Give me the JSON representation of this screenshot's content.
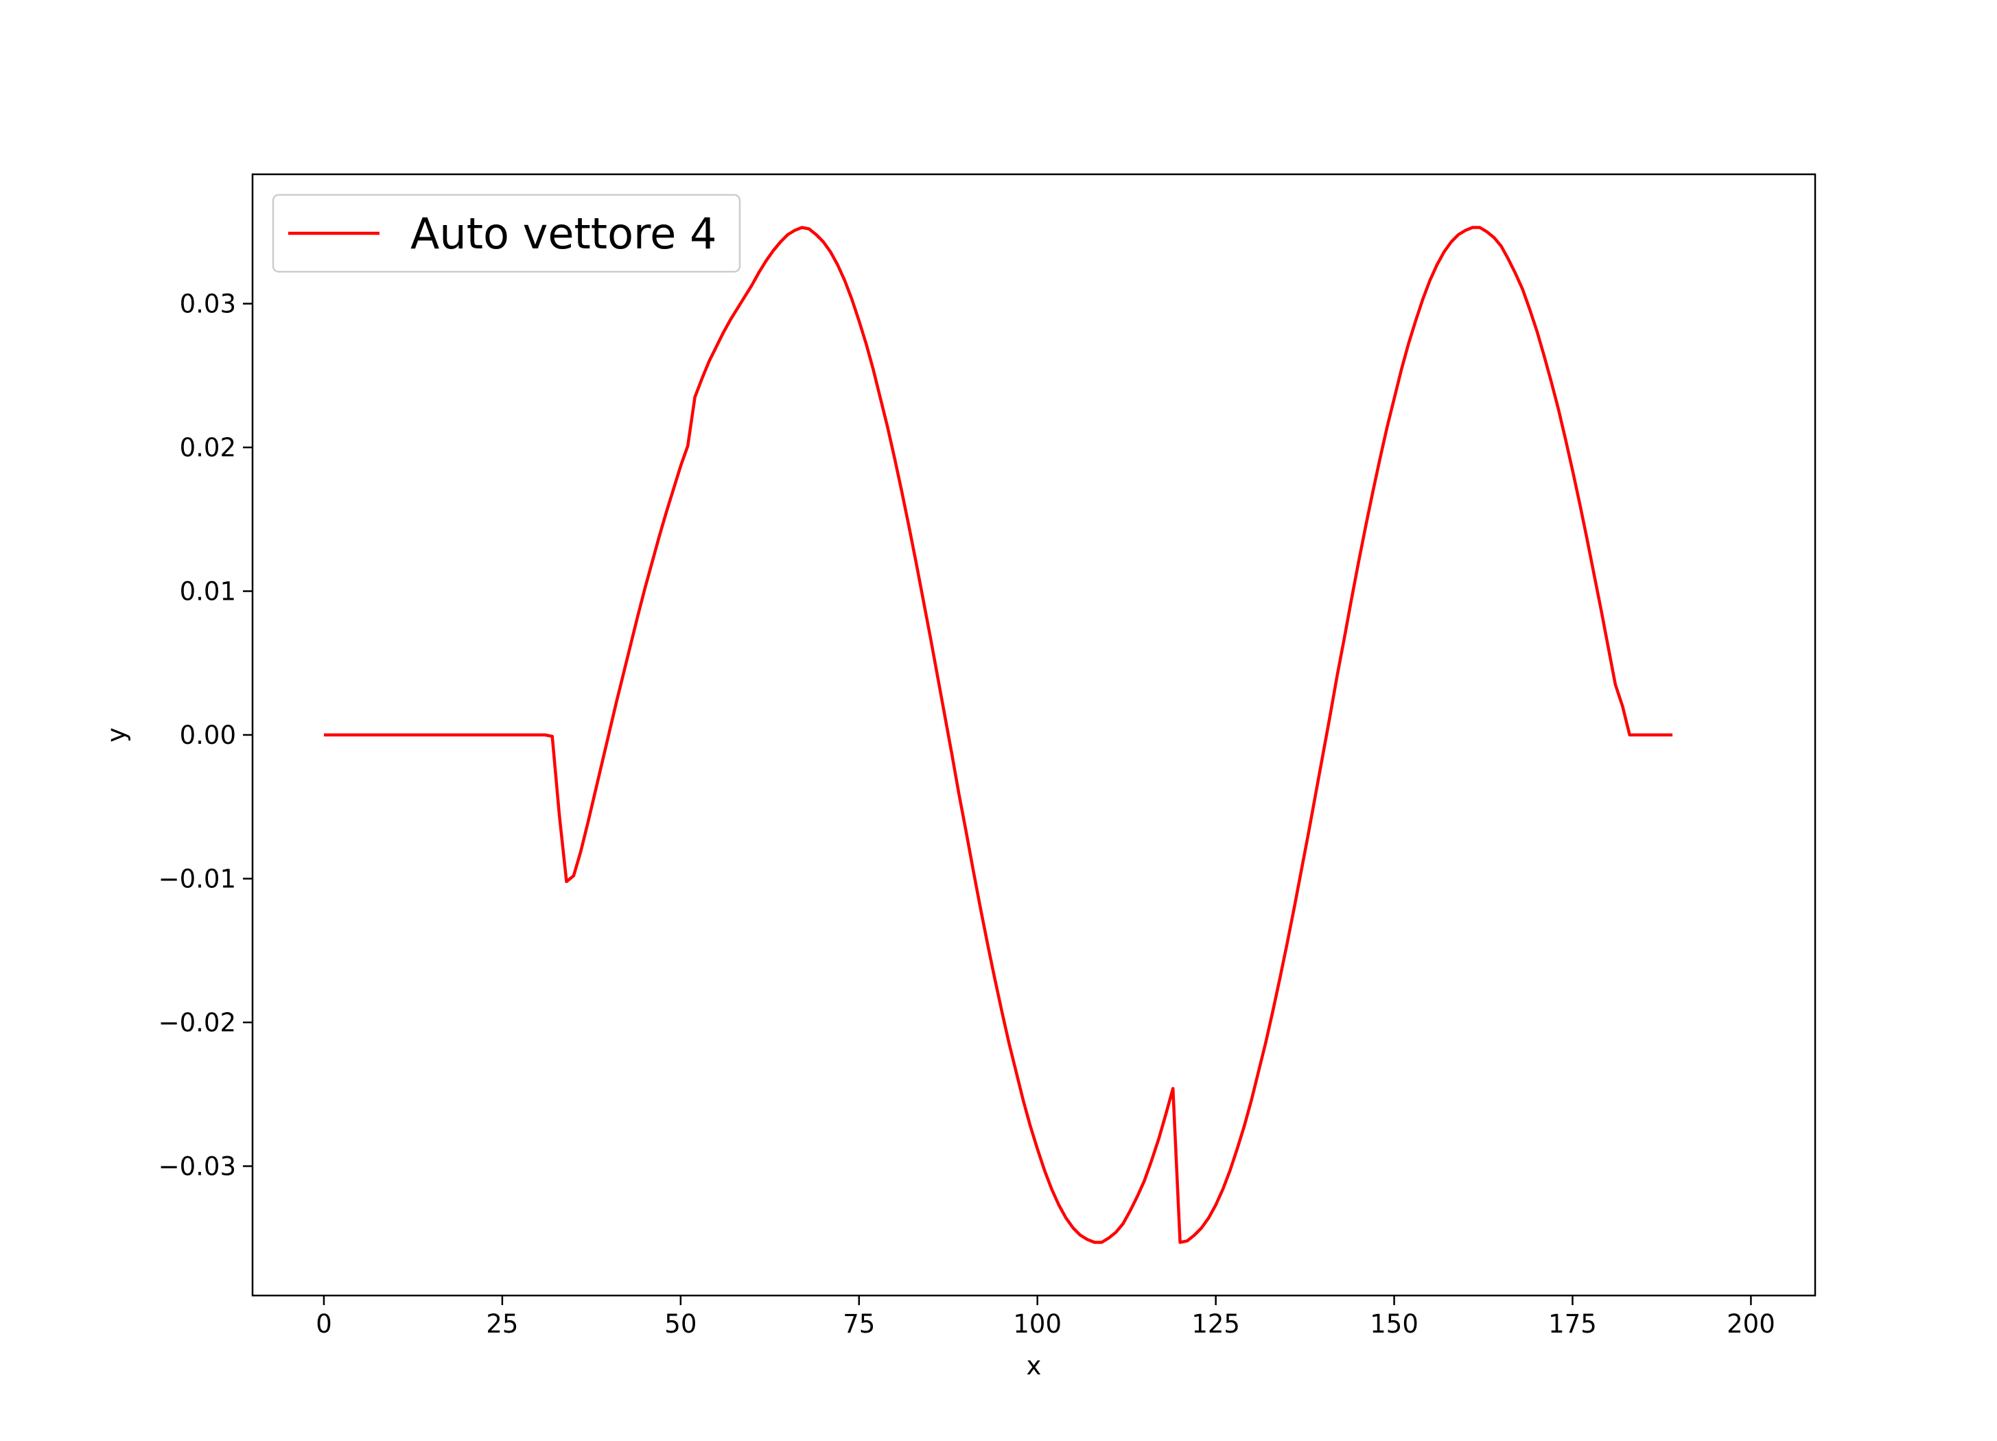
{
  "chart_data": {
    "type": "line",
    "xlabel": "x",
    "ylabel": "y",
    "xlim": [
      -10,
      209
    ],
    "ylim": [
      -0.039,
      0.039
    ],
    "xticks": [
      0,
      25,
      50,
      75,
      100,
      125,
      150,
      175,
      200
    ],
    "xtick_labels": [
      "0",
      "25",
      "50",
      "75",
      "100",
      "125",
      "150",
      "175",
      "200"
    ],
    "yticks": [
      -0.03,
      -0.02,
      -0.01,
      0.0,
      0.01,
      0.02,
      0.03
    ],
    "ytick_labels": [
      "−0.03",
      "−0.02",
      "−0.01",
      "0.00",
      "0.01",
      "0.02",
      "0.03"
    ],
    "grid": false,
    "legend_position": "upper-left",
    "series": [
      {
        "name": "Auto vettore 4",
        "color": "#ff0000",
        "x_start": 0,
        "x_end": 199,
        "step": 1,
        "y": [
          0.0,
          0.0,
          0.0,
          0.0,
          0.0,
          0.0,
          0.0,
          0.0,
          0.0,
          0.0,
          0.0,
          0.0,
          0.0,
          0.0,
          0.0,
          0.0,
          0.0,
          0.0,
          0.0,
          0.0,
          0.0,
          0.0,
          0.0,
          0.0,
          0.0,
          0.0,
          0.0,
          0.0,
          0.0,
          0.0,
          0.0,
          0.0,
          -0.0001,
          -0.0056,
          -0.0102,
          -0.0098,
          -0.0081,
          -0.0061,
          -0.004,
          -0.0019,
          0.0002,
          0.0023,
          0.0043,
          0.0063,
          0.0083,
          0.0102,
          0.012,
          0.0138,
          0.0155,
          0.0171,
          0.0187,
          0.0201,
          0.0235,
          0.0248,
          0.026,
          0.027,
          0.028,
          0.0289,
          0.0297,
          0.0305,
          0.0313,
          0.0322,
          0.033,
          0.0337,
          0.0343,
          0.0348,
          0.0351,
          0.0353,
          0.0352,
          0.0348,
          0.0343,
          0.0336,
          0.0327,
          0.0316,
          0.0303,
          0.0288,
          0.0272,
          0.0254,
          0.0234,
          0.0214,
          0.0192,
          0.0169,
          0.0145,
          0.012,
          0.0094,
          0.0068,
          0.0041,
          0.0014,
          -0.0013,
          -0.0041,
          -0.0067,
          -0.0094,
          -0.012,
          -0.0145,
          -0.0169,
          -0.0192,
          -0.0214,
          -0.0234,
          -0.0254,
          -0.0272,
          -0.0288,
          -0.0303,
          -0.0316,
          -0.0327,
          -0.0336,
          -0.0343,
          -0.0348,
          -0.0351,
          -0.0353,
          -0.0353,
          -0.035,
          -0.0346,
          -0.034,
          -0.0331,
          -0.0321,
          -0.031,
          -0.0296,
          -0.0281,
          -0.0264,
          -0.0246,
          -0.0353,
          -0.0352,
          -0.0348,
          -0.0343,
          -0.0336,
          -0.0327,
          -0.0316,
          -0.0303,
          -0.0288,
          -0.0272,
          -0.0254,
          -0.0234,
          -0.0214,
          -0.0192,
          -0.0169,
          -0.0145,
          -0.012,
          -0.0094,
          -0.0068,
          -0.0041,
          -0.0014,
          0.0013,
          0.0041,
          0.0067,
          0.0094,
          0.012,
          0.0145,
          0.0169,
          0.0192,
          0.0214,
          0.0234,
          0.0254,
          0.0272,
          0.0288,
          0.0303,
          0.0316,
          0.0327,
          0.0336,
          0.0343,
          0.0348,
          0.0351,
          0.0353,
          0.0353,
          0.035,
          0.0346,
          0.034,
          0.0331,
          0.0321,
          0.031,
          0.0296,
          0.0281,
          0.0264,
          0.0246,
          0.0227,
          0.0206,
          0.0184,
          0.0161,
          0.0137,
          0.0112,
          0.0087,
          0.0061,
          0.0035,
          0.002,
          0.0,
          0.0,
          0.0,
          0.0,
          0.0,
          0.0,
          0.0
        ]
      }
    ]
  }
}
